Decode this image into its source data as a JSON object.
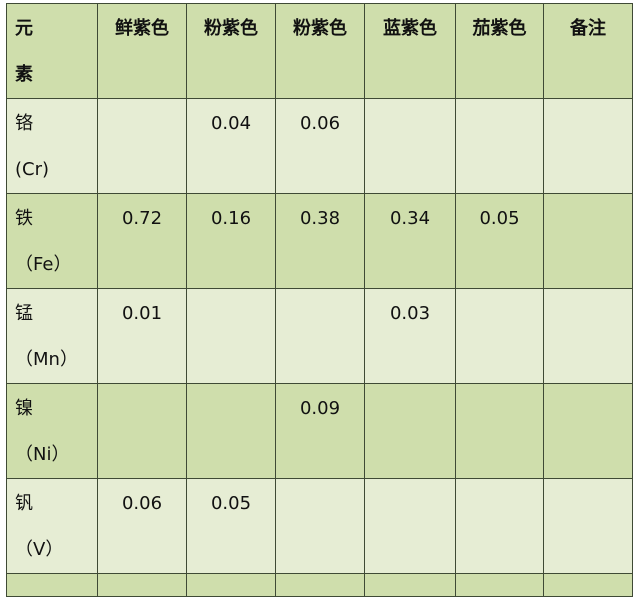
{
  "headers": [
    "元\n素",
    "鲜紫色",
    "粉紫色",
    "粉紫色",
    "蓝紫色",
    "茄紫色",
    "备注"
  ],
  "header_first": [
    "元",
    "素"
  ],
  "rows": [
    {
      "element": "铬",
      "symbol": "(Cr)",
      "values": [
        "",
        "0.04",
        "0.06",
        "",
        "",
        ""
      ]
    },
    {
      "element": "铁",
      "symbol": "（Fe）",
      "values": [
        "0.72",
        "0.16",
        "0.38",
        "0.34",
        "0.05",
        ""
      ]
    },
    {
      "element": "锰",
      "symbol": "（Mn）",
      "values": [
        "0.01",
        "",
        "",
        "0.03",
        "",
        ""
      ]
    },
    {
      "element": "镍",
      "symbol": "（Ni）",
      "values": [
        "",
        "",
        "0.09",
        "",
        "",
        ""
      ]
    },
    {
      "element": "钒",
      "symbol": "（V）",
      "values": [
        "0.06",
        "0.05",
        "",
        "",
        "",
        ""
      ]
    }
  ],
  "colors": {
    "header": "#cfdeac",
    "light_row": "#e6edd4",
    "border": "#3f4a35"
  }
}
